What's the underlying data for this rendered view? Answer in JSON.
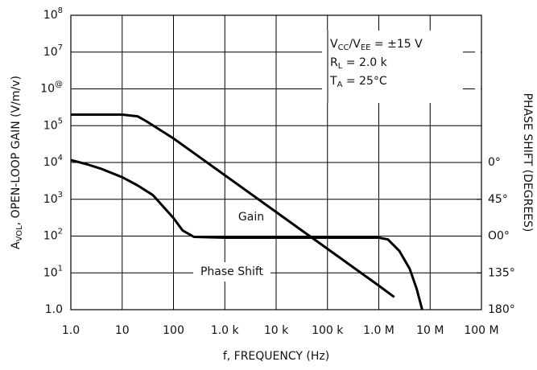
{
  "chart_data": {
    "type": "line",
    "xlabel": "f, FREQUENCY (Hz)",
    "ylabel": [
      "A",
      "VOL",
      ", OPEN-LOOP GAIN (V/m/v)"
    ],
    "y2label": "PHASE SHIFT (DEGREES)",
    "conditions": [
      [
        "V",
        "CC",
        "/V",
        "EE",
        " = ±15 V"
      ],
      [
        "R",
        "L",
        " = 2.0 k"
      ],
      [
        "T",
        "A",
        " = 25°C"
      ]
    ],
    "xscale": "log",
    "yscale": "log",
    "grid": true,
    "xlim": [
      1,
      100000000
    ],
    "xticks": [
      {
        "value": 1,
        "label": "1.0"
      },
      10,
      100,
      {
        "value": 1000,
        "label": "1.0 k"
      },
      {
        "value": 10000,
        "label": "10 k"
      },
      {
        "value": 100000,
        "label": "100 k"
      },
      {
        "value": 1000000,
        "label": "1.0 M"
      },
      {
        "value": 10000000,
        "label": "10 M"
      },
      {
        "value": 100000000,
        "label": "100 M"
      }
    ],
    "ylim": [
      1,
      100000000
    ],
    "yticks": [
      {
        "value": 1,
        "label": "1.0"
      },
      {
        "value": 10,
        "label": "10",
        "exponent": "1"
      },
      {
        "value": 100,
        "label": "10",
        "exponent": "2"
      },
      {
        "value": 1000,
        "label": "10",
        "exponent": "3"
      },
      {
        "value": 10000,
        "label": "10",
        "exponent": "4"
      },
      {
        "value": 100000,
        "label": "10",
        "exponent": "5"
      },
      {
        "value": 1000000,
        "label": "10",
        "exponent": "@"
      },
      {
        "value": 10000000,
        "label": "10",
        "exponent": "7"
      },
      {
        "value": 100000000,
        "label": "10",
        "exponent": "8"
      }
    ],
    "y2lim": [
      180,
      -180
    ],
    "y2ticks": [
      {
        "value": 0,
        "label": "0°"
      },
      {
        "value": 45,
        "label": "45°"
      },
      {
        "value": 90,
        "label": "O0°"
      },
      {
        "value": 135,
        "label": "135°"
      },
      {
        "value": 180,
        "label": "180°"
      }
    ],
    "series": [
      {
        "name": "Gain",
        "color": "#000000",
        "x": [
          1,
          10,
          20,
          30,
          100,
          1000,
          10000,
          100000,
          1000000,
          2000000
        ],
        "values": [
          200000,
          200000,
          180000,
          130000,
          45000,
          4500,
          450,
          45,
          4.5,
          2.2
        ]
      },
      {
        "name": "Phase Shift",
        "color": "#000000",
        "axis": "y2",
        "x": [
          1,
          2,
          4,
          10,
          20,
          40,
          100,
          150,
          250,
          1000,
          100000,
          1000000,
          1500000,
          2500000,
          4000000,
          5500000,
          7000000
        ],
        "values": [
          -3,
          2,
          8,
          18,
          28,
          40,
          68,
          83,
          91,
          92,
          92,
          92,
          94,
          108,
          130,
          155,
          180
        ]
      }
    ]
  }
}
